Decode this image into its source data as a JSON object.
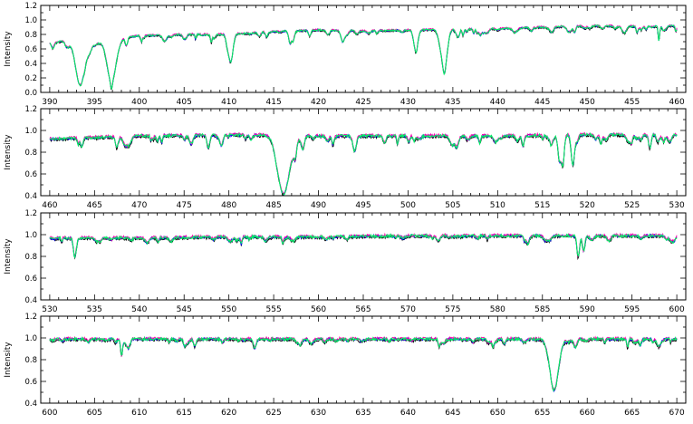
{
  "chart_data": [
    {
      "type": "line",
      "ylabel": "Intensity",
      "xlim": [
        389,
        461
      ],
      "ylim": [
        0.0,
        1.2
      ],
      "x_ticks": [
        390,
        395,
        400,
        405,
        410,
        415,
        420,
        425,
        430,
        435,
        440,
        445,
        450,
        455,
        460
      ],
      "y_ticks": [
        0.0,
        0.2,
        0.4,
        0.6,
        0.8,
        1.0,
        1.2
      ],
      "y_tick_labels": [
        "0.0",
        "0.2",
        "0.4",
        "0.6",
        "0.8",
        "1.0",
        "1.2"
      ],
      "continuum": [
        [
          390,
          0.7
        ],
        [
          395,
          0.7
        ],
        [
          400,
          0.78
        ],
        [
          405,
          0.8
        ],
        [
          410,
          0.8
        ],
        [
          415,
          0.84
        ],
        [
          420,
          0.86
        ],
        [
          425,
          0.85
        ],
        [
          430,
          0.86
        ],
        [
          435,
          0.87
        ],
        [
          440,
          0.88
        ],
        [
          445,
          0.9
        ],
        [
          450,
          0.92
        ],
        [
          455,
          0.91
        ],
        [
          460,
          0.92
        ]
      ],
      "lines": [
        {
          "x": 393.4,
          "depth": 0.6,
          "width": 0.7
        },
        {
          "x": 396.9,
          "depth": 0.58,
          "width": 0.7
        },
        {
          "x": 410.2,
          "depth": 0.38,
          "width": 0.35
        },
        {
          "x": 422.7,
          "depth": 0.15,
          "width": 0.25
        },
        {
          "x": 430.8,
          "depth": 0.22,
          "width": 0.3
        },
        {
          "x": 434.0,
          "depth": 0.52,
          "width": 0.4
        },
        {
          "x": 458.0,
          "depth": 0.2,
          "width": 0.12
        }
      ],
      "series": [
        {
          "color": "#000000"
        },
        {
          "color": "#0000ff"
        },
        {
          "color": "#ff00aa"
        },
        {
          "color": "#00ee66"
        }
      ]
    },
    {
      "type": "line",
      "ylabel": "Intensity",
      "xlim": [
        459,
        531
      ],
      "ylim": [
        0.4,
        1.2
      ],
      "x_ticks": [
        460,
        465,
        470,
        475,
        480,
        485,
        490,
        495,
        500,
        505,
        510,
        515,
        520,
        525,
        530
      ],
      "y_ticks": [
        0.4,
        0.6,
        0.8,
        1.0,
        1.2
      ],
      "y_tick_labels": [
        "0.4",
        "0.6",
        "0.8",
        "1.0",
        "1.2"
      ],
      "continuum": [
        [
          460,
          0.92
        ],
        [
          470,
          0.95
        ],
        [
          480,
          0.96
        ],
        [
          490,
          0.95
        ],
        [
          500,
          0.95
        ],
        [
          510,
          0.95
        ],
        [
          520,
          0.96
        ],
        [
          530,
          0.96
        ]
      ],
      "lines": [
        {
          "x": 486.1,
          "depth": 0.54,
          "width": 0.9
        },
        {
          "x": 516.9,
          "depth": 0.2,
          "width": 0.25
        },
        {
          "x": 517.3,
          "depth": 0.22,
          "width": 0.2
        },
        {
          "x": 518.4,
          "depth": 0.28,
          "width": 0.25
        },
        {
          "x": 527.0,
          "depth": 0.12,
          "width": 0.2
        }
      ],
      "series": [
        {
          "color": "#000000"
        },
        {
          "color": "#0000ff"
        },
        {
          "color": "#ff00aa"
        },
        {
          "color": "#00ee66"
        }
      ]
    },
    {
      "type": "line",
      "ylabel": "Intensity",
      "xlim": [
        529,
        601
      ],
      "ylim": [
        0.4,
        1.2
      ],
      "x_ticks": [
        530,
        535,
        540,
        545,
        550,
        555,
        560,
        565,
        570,
        575,
        580,
        585,
        590,
        595,
        600
      ],
      "y_ticks": [
        0.4,
        0.6,
        0.8,
        1.0,
        1.2
      ],
      "y_tick_labels": [
        "0.4",
        "0.6",
        "0.8",
        "1.0",
        "1.2"
      ],
      "continuum": [
        [
          530,
          0.97
        ],
        [
          540,
          0.97
        ],
        [
          550,
          0.98
        ],
        [
          560,
          0.98
        ],
        [
          570,
          0.99
        ],
        [
          580,
          0.99
        ],
        [
          590,
          0.99
        ],
        [
          600,
          0.99
        ]
      ],
      "lines": [
        {
          "x": 532.8,
          "depth": 0.17,
          "width": 0.2
        },
        {
          "x": 589.0,
          "depth": 0.2,
          "width": 0.2
        },
        {
          "x": 589.6,
          "depth": 0.14,
          "width": 0.2
        }
      ],
      "series": [
        {
          "color": "#000000"
        },
        {
          "color": "#0000ff"
        },
        {
          "color": "#ff00aa"
        },
        {
          "color": "#00ee66"
        }
      ]
    },
    {
      "type": "line",
      "ylabel": "Intensity",
      "xlim": [
        599,
        671
      ],
      "ylim": [
        0.4,
        1.2
      ],
      "x_ticks": [
        600,
        605,
        610,
        615,
        620,
        625,
        630,
        635,
        640,
        645,
        650,
        655,
        660,
        665,
        670
      ],
      "y_ticks": [
        0.4,
        0.6,
        0.8,
        1.0,
        1.2
      ],
      "y_tick_labels": [
        "0.4",
        "0.6",
        "0.8",
        "1.0",
        "1.2"
      ],
      "continuum": [
        [
          600,
          0.99
        ],
        [
          610,
          0.99
        ],
        [
          620,
          0.99
        ],
        [
          630,
          0.99
        ],
        [
          640,
          0.99
        ],
        [
          650,
          0.99
        ],
        [
          660,
          0.99
        ],
        [
          670,
          0.99
        ]
      ],
      "lines": [
        {
          "x": 656.3,
          "depth": 0.45,
          "width": 0.7
        },
        {
          "x": 608.0,
          "depth": 0.1,
          "width": 0.15
        },
        {
          "x": 616.2,
          "depth": 0.07,
          "width": 0.2
        },
        {
          "x": 649.5,
          "depth": 0.07,
          "width": 0.2
        },
        {
          "x": 664.5,
          "depth": 0.08,
          "width": 0.12
        }
      ],
      "series": [
        {
          "color": "#000000"
        },
        {
          "color": "#0000ff"
        },
        {
          "color": "#ff00aa"
        },
        {
          "color": "#00ee66"
        }
      ]
    }
  ]
}
